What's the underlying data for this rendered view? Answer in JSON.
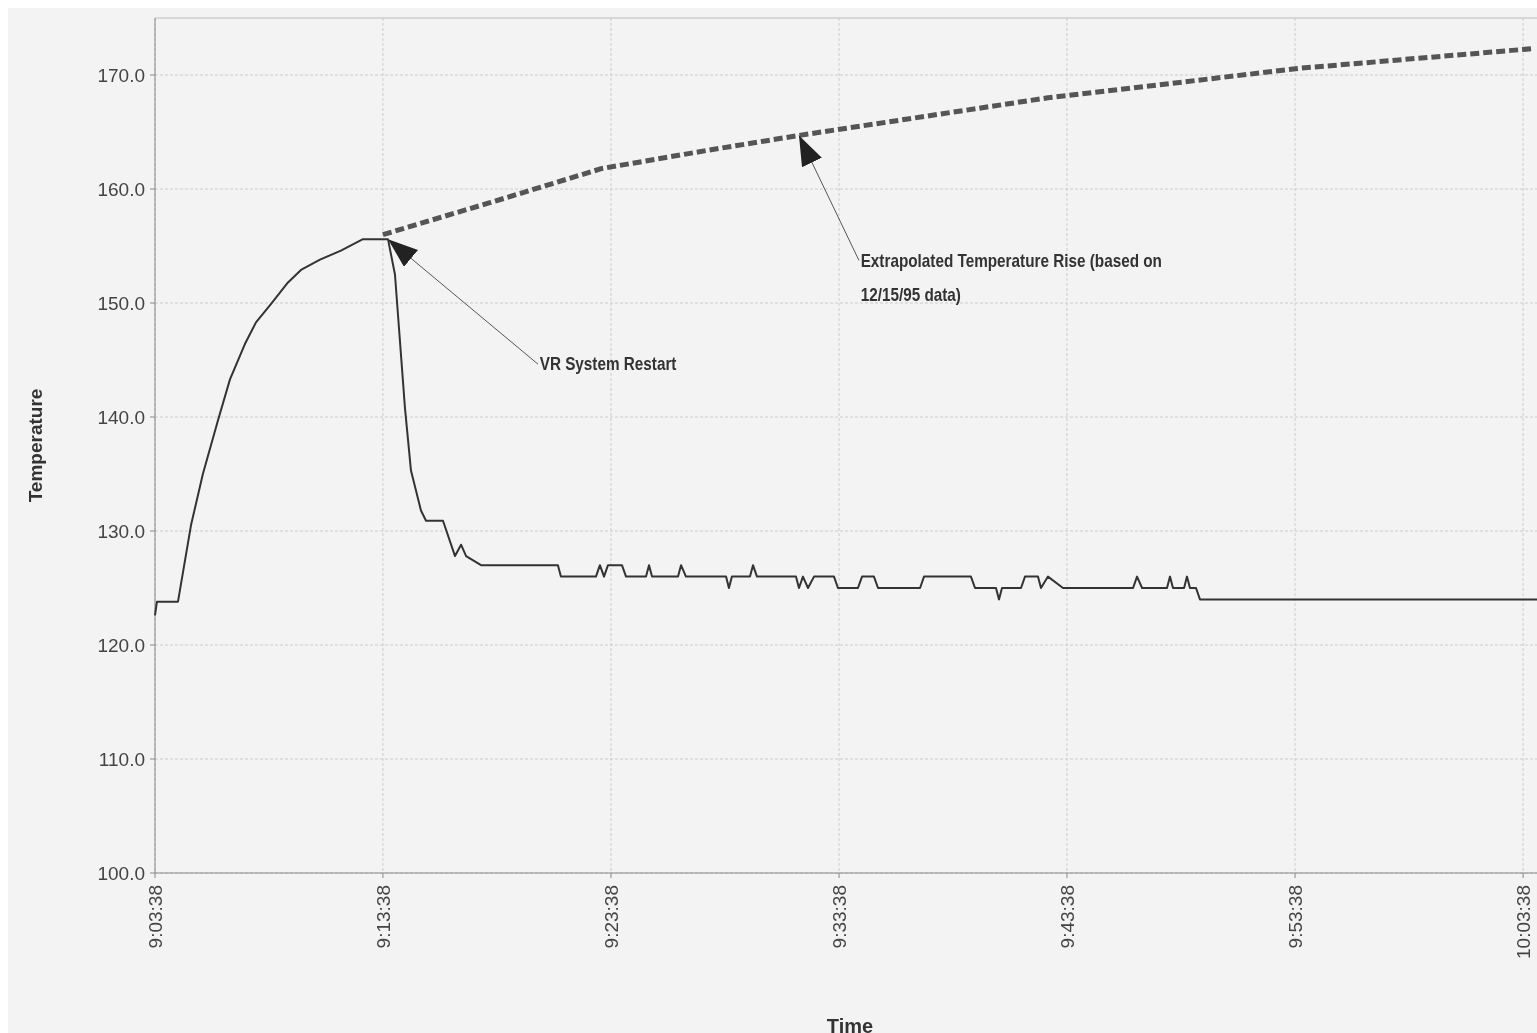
{
  "chart_data": {
    "type": "line",
    "xlabel": "Time",
    "ylabel": "Temperature",
    "xlim": [
      9.0606,
      10.0766
    ],
    "ylim": [
      100,
      175
    ],
    "xticks": [
      {
        "value": 9.0606,
        "label": "9:03:38"
      },
      {
        "value": 9.2272,
        "label": "9:13:38"
      },
      {
        "value": 9.3939,
        "label": "9:23:38"
      },
      {
        "value": 9.5606,
        "label": "9:33:38"
      },
      {
        "value": 9.7272,
        "label": "9:43:38"
      },
      {
        "value": 9.8939,
        "label": "9:53:38"
      },
      {
        "value": 10.0606,
        "label": "10:03:38"
      }
    ],
    "yticks": [
      {
        "value": 100,
        "label": "100.0"
      },
      {
        "value": 110,
        "label": "110.0"
      },
      {
        "value": 120,
        "label": "120.0"
      },
      {
        "value": 130,
        "label": "130.0"
      },
      {
        "value": 140,
        "label": "140.0"
      },
      {
        "value": 150,
        "label": "150.0"
      },
      {
        "value": 160,
        "label": "160.0"
      },
      {
        "value": 170,
        "label": "170.0"
      }
    ],
    "grid": true,
    "series": [
      {
        "color": "#333333",
        "line_style": "solid",
        "x": [
          9.0606,
          9.062,
          9.0774,
          9.0869,
          9.0956,
          9.1066,
          9.1154,
          9.1263,
          9.1344,
          9.1453,
          9.1578,
          9.1673,
          9.1812,
          9.1965,
          9.2126,
          9.2309,
          9.236,
          9.2433,
          9.2477,
          9.255,
          9.2587,
          9.2711,
          9.2799,
          9.2843,
          9.288,
          9.2989,
          9.3551,
          9.3573,
          9.3829,
          9.3858,
          9.3888,
          9.3917,
          9.4019,
          9.4049,
          9.4195,
          9.4217,
          9.4239,
          9.4429,
          9.4451,
          9.4487,
          9.478,
          9.4801,
          9.4823,
          9.4955,
          9.4977,
          9.5006,
          9.5291,
          9.5313,
          9.5342,
          9.5379,
          9.5423,
          9.5569,
          9.5598,
          9.5744,
          9.5774,
          9.5861,
          9.5891,
          9.6198,
          9.6227,
          9.657,
          9.66,
          9.6753,
          9.6775,
          9.6797,
          9.6936,
          9.6965,
          9.706,
          9.7082,
          9.7133,
          9.7243,
          9.7755,
          9.7784,
          9.7821,
          9.8003,
          9.8025,
          9.8047,
          9.8128,
          9.8149,
          9.8171,
          9.8215,
          9.8244,
          10.0766
        ],
        "values": [
          122.6,
          123.8,
          123.8,
          130.5,
          135,
          139.7,
          143.3,
          146.4,
          148.3,
          149.9,
          151.8,
          152.9,
          153.8,
          154.6,
          155.6,
          155.6,
          152.5,
          140.8,
          135.3,
          131.8,
          130.9,
          130.9,
          127.8,
          128.8,
          127.8,
          127,
          127,
          126,
          126,
          127,
          126,
          127,
          127,
          126,
          126,
          127,
          126,
          126,
          127,
          126,
          126,
          125,
          126,
          126,
          127,
          126,
          126,
          125,
          126,
          125,
          126,
          126,
          125,
          125,
          126,
          126,
          125,
          125,
          126,
          126,
          125,
          125,
          124,
          125,
          125,
          126,
          126,
          125,
          126,
          125,
          125,
          126,
          125,
          125,
          126,
          125,
          125,
          126,
          125,
          125,
          124,
          124
        ]
      },
      {
        "color": "#555555",
        "line_style": "dashed",
        "x": [
          9.2272,
          9.3054,
          9.3873,
          9.4648,
          9.5313,
          9.7133,
          9.8983,
          10.0664
        ],
        "values": [
          156,
          158.8,
          161.8,
          163.4,
          164.7,
          168,
          170.6,
          172.3
        ]
      }
    ],
    "annotations": [
      {
        "text": "VR System Restart",
        "x": 9.2309,
        "y": 155.6
      },
      {
        "text": "Extrapolated Temperature Rise  (based on 12/15/95 data)",
        "x": 9.5313,
        "y": 164.7
      }
    ]
  }
}
